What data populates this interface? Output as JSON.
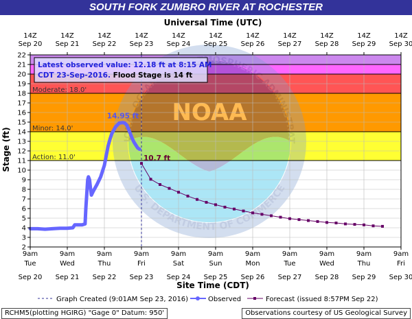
{
  "title": "SOUTH FORK ZUMBRO RIVER AT ROCHESTER",
  "colors": {
    "title_bg": "#33339a",
    "record_band": "#cc88ee",
    "major_band": "#ff66ff",
    "moderate_band": "#ff5555",
    "minor_band": "#ff9900",
    "action_band": "#ffff33",
    "observed": "#6666ff",
    "forecast": "#660066",
    "watermark": "#00aadd"
  },
  "annotation": {
    "line1": "Latest observed value: 12.18 ft at 8:15 AM",
    "line2a": "CDT 23-Sep-2016.",
    "line2b": " Flood Stage is 14 ft"
  },
  "watermark": {
    "ring_top": "NATIONAL OCEANIC AND ATMOSPHERIC ADMINISTRATION",
    "ring_bottom": "U.S. DEPARTMENT OF COMMERCE",
    "logo": "NOAA"
  },
  "legend": {
    "graph_created": "Graph Created (9:01AM Sep 23, 2016)",
    "observed": "Observed",
    "forecast": "Forecast (issued 8:57PM Sep 22)"
  },
  "footer": {
    "left": "RCHM5(plotting HGIRG) \"Gage 0\" Datum: 950'",
    "right": "Observations courtesy of US Geological Survey"
  },
  "chart_data": {
    "type": "line",
    "xlabel_top": "Universal Time (UTC)",
    "xlabel_bottom": "Site Time (CDT)",
    "ylabel": "Stage (ft)",
    "ylim": [
      2,
      22
    ],
    "xlim_days": [
      0,
      10
    ],
    "yticks": [
      2,
      3,
      4,
      5,
      6,
      7,
      8,
      9,
      10,
      11,
      12,
      13,
      14,
      15,
      16,
      17,
      18,
      19,
      20,
      21,
      22
    ],
    "top_ticks": [
      {
        "time": "14Z",
        "date": "Sep 20"
      },
      {
        "time": "14Z",
        "date": "Sep 21"
      },
      {
        "time": "14Z",
        "date": "Sep 22"
      },
      {
        "time": "14Z",
        "date": "Sep 23"
      },
      {
        "time": "14Z",
        "date": "Sep 24"
      },
      {
        "time": "14Z",
        "date": "Sep 25"
      },
      {
        "time": "14Z",
        "date": "Sep 26"
      },
      {
        "time": "14Z",
        "date": "Sep 27"
      },
      {
        "time": "14Z",
        "date": "Sep 28"
      },
      {
        "time": "14Z",
        "date": "Sep 29"
      },
      {
        "time": "14Z",
        "date": "Sep 30"
      }
    ],
    "bottom_ticks": [
      {
        "time": "9am",
        "day": "Tue",
        "date": "Sep 20"
      },
      {
        "time": "9am",
        "day": "Wed",
        "date": "Sep 21"
      },
      {
        "time": "9am",
        "day": "Thu",
        "date": "Sep 22"
      },
      {
        "time": "9am",
        "day": "Fri",
        "date": "Sep 23"
      },
      {
        "time": "9am",
        "day": "Sat",
        "date": "Sep 24"
      },
      {
        "time": "9am",
        "day": "Sun",
        "date": "Sep 25"
      },
      {
        "time": "9am",
        "day": "Mon",
        "date": "Sep 26"
      },
      {
        "time": "9am",
        "day": "Tue",
        "date": "Sep 27"
      },
      {
        "time": "9am",
        "day": "Wed",
        "date": "Sep 28"
      },
      {
        "time": "9am",
        "day": "Thu",
        "date": "Sep 29"
      },
      {
        "time": "9am",
        "day": "Fri",
        "date": "Sep 30"
      }
    ],
    "flood_categories": [
      {
        "name": "Action",
        "label": "Action: 11.0'",
        "stage": 11.0,
        "color": "#ffff33"
      },
      {
        "name": "Minor",
        "label": "Minor: 14.0'",
        "stage": 14.0,
        "color": "#ff9900"
      },
      {
        "name": "Moderate",
        "label": "Moderate: 18.0'",
        "stage": 18.0,
        "color": "#ff5555"
      },
      {
        "name": "Major",
        "label": "",
        "stage": 20.0,
        "color": "#ff66ff"
      },
      {
        "name": "Record",
        "label": "",
        "stage": 21.0,
        "color": "#cc88ee"
      }
    ],
    "graph_created_day": 3.0,
    "series": [
      {
        "name": "Observed",
        "x_days": [
          0.0,
          0.2,
          0.4,
          0.6,
          0.8,
          1.0,
          1.15,
          1.2,
          1.3,
          1.4,
          1.48,
          1.5,
          1.52,
          1.55,
          1.57,
          1.6,
          1.62,
          1.65,
          1.7,
          1.8,
          1.9,
          2.0,
          2.05,
          2.1,
          2.15,
          2.2,
          2.3,
          2.4,
          2.5,
          2.55,
          2.6,
          2.65,
          2.7,
          2.75,
          2.8,
          2.85,
          2.9,
          2.95
        ],
        "values": [
          3.9,
          3.9,
          3.85,
          3.9,
          3.95,
          3.95,
          4.0,
          4.3,
          4.3,
          4.3,
          4.4,
          6.0,
          7.2,
          9.0,
          9.3,
          9.0,
          8.3,
          7.4,
          7.8,
          8.5,
          9.3,
          10.5,
          11.5,
          12.5,
          13.2,
          13.8,
          14.5,
          14.9,
          14.95,
          14.9,
          14.7,
          14.3,
          13.8,
          13.3,
          12.9,
          12.6,
          12.3,
          12.18
        ],
        "peak_label": "14.95 ft",
        "color": "#6666ff"
      },
      {
        "name": "Forecast",
        "x_days": [
          3.0,
          3.25,
          3.5,
          3.75,
          4.0,
          4.25,
          4.5,
          4.75,
          5.0,
          5.25,
          5.5,
          5.75,
          6.0,
          6.25,
          6.5,
          6.75,
          7.0,
          7.25,
          7.5,
          7.75,
          8.0,
          8.25,
          8.5,
          8.75,
          9.0,
          9.25,
          9.5
        ],
        "values": [
          10.7,
          9.05,
          8.5,
          8.1,
          7.7,
          7.3,
          6.95,
          6.65,
          6.4,
          6.15,
          5.95,
          5.75,
          5.55,
          5.4,
          5.25,
          5.1,
          4.95,
          4.85,
          4.75,
          4.65,
          4.55,
          4.5,
          4.4,
          4.35,
          4.3,
          4.2,
          4.15
        ],
        "start_label": "10.7 ft",
        "color": "#660066"
      }
    ]
  }
}
